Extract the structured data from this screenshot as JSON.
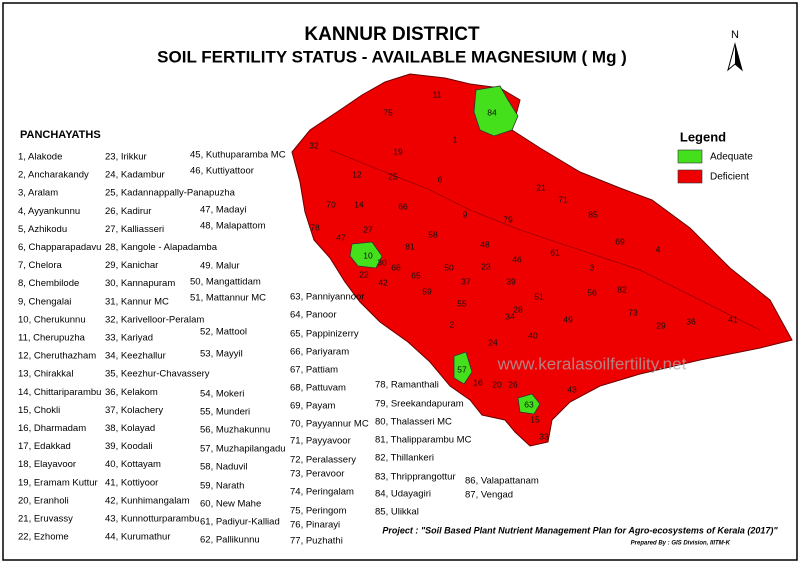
{
  "title": "KANNUR DISTRICT",
  "subtitle": "SOIL FERTILITY STATUS - AVAILABLE MAGNESIUM ( Mg )",
  "north_label": "N",
  "panchayaths": {
    "heading": "PANCHAYATHS",
    "items": [
      "1, Alakode",
      "2, Ancharakandy",
      "3, Aralam",
      "4, Ayyankunnu",
      "5, Azhikodu",
      "6, Chapparapadavu",
      "7, Chelora",
      "8, Chembilode",
      "9, Chengalai",
      "10, Cherukunnu",
      "11, Cherupuzha",
      "12, Cheruthazham",
      "13, Chirakkal",
      "14, Chittariparambu",
      "15, Chokli",
      "16, Dharmadam",
      "17, Edakkad",
      "18, Elayavoor",
      "19, Eramam Kuttur",
      "20, Eranholi",
      "21, Eruvassy",
      "22, Ezhome",
      "23, Irikkur",
      "24, Kadambur",
      "25, Kadannappally-Panapuzha",
      "26, Kadirur",
      "27, Kalliasseri",
      "28, Kangole - Alapadamba",
      "29, Kanichar",
      "30, Kannapuram",
      "31, Kannur MC",
      "32, Karivelloor-Peralam",
      "33, Kariyad",
      "34, Keezhallur",
      "35, Keezhur-Chavassery",
      "36, Kelakom",
      "37, Kolachery",
      "38, Kolayad",
      "39, Koodali",
      "40, Kottayam",
      "41, Kottiyoor",
      "42, Kunhimangalam",
      "43, Kunnotturparambu",
      "44, Kurumathur",
      "45, Kuthuparamba MC",
      "46, Kuttiyattoor",
      "47, Madayi",
      "48, Malapattom",
      "49. Malur",
      "50, Mangattidam",
      "51, Mattannur MC",
      "52, Mattool",
      "53, Mayyil",
      "54, Mokeri",
      "55, Munderi",
      "56, Muzhakunnu",
      "57, Muzhapilangadu",
      "58, Naduvil",
      "59, Narath",
      "60, New Mahe",
      "61, Padiyur-Kalliad",
      "62, Pallikunnu",
      "63, Panniyannoor",
      "64, Panoor",
      "65, Pappinizerry",
      "66, Pariyaram",
      "67, Pattiam",
      "68, Pattuvam",
      "69, Payam",
      "70, Payyannur MC",
      "71, Payyavoor",
      "72, Peralassery",
      "73, Peravoor",
      "74, Peringalam",
      "75, Peringom",
      "76, Pinarayi",
      "77, Puzhathi",
      "78, Ramanthali",
      "79, Sreekandapuram",
      "80, Thalasseri MC",
      "81, Thalipparambu MC",
      "82, Thillankeri",
      "83, Thripprangottur",
      "84, Udayagiri",
      "85, Ulikkal",
      "86, Valapattanam",
      "87, Vengad"
    ]
  },
  "legend": {
    "title": "Legend",
    "items": [
      {
        "label": "Adequate",
        "color": "#44e01c"
      },
      {
        "label": "Deficient",
        "color": "#ee0000"
      }
    ]
  },
  "map": {
    "region_labels": [
      "11",
      "84",
      "75",
      "1",
      "32",
      "19",
      "6",
      "12",
      "25",
      "66",
      "14",
      "9",
      "79",
      "21",
      "71",
      "85",
      "69",
      "4",
      "78",
      "47",
      "10",
      "27",
      "81",
      "58",
      "48",
      "61",
      "46",
      "23",
      "42",
      "3",
      "65",
      "50",
      "36",
      "41",
      "30",
      "70",
      "68",
      "22",
      "40",
      "57",
      "16",
      "20",
      "26",
      "63",
      "43",
      "15",
      "33",
      "73",
      "29",
      "2",
      "56",
      "82",
      "39",
      "51",
      "49",
      "34",
      "55",
      "59",
      "37",
      "24",
      "28"
    ]
  },
  "watermark": "www.keralasoilfertility.net",
  "footer": {
    "project": "Project : \"Soil Based Plant Nutrient Management Plan for Agro-ecosystems of Kerala (2017)\"",
    "prepared_by": "Prepared By : GIS Division, IIITM-K"
  }
}
